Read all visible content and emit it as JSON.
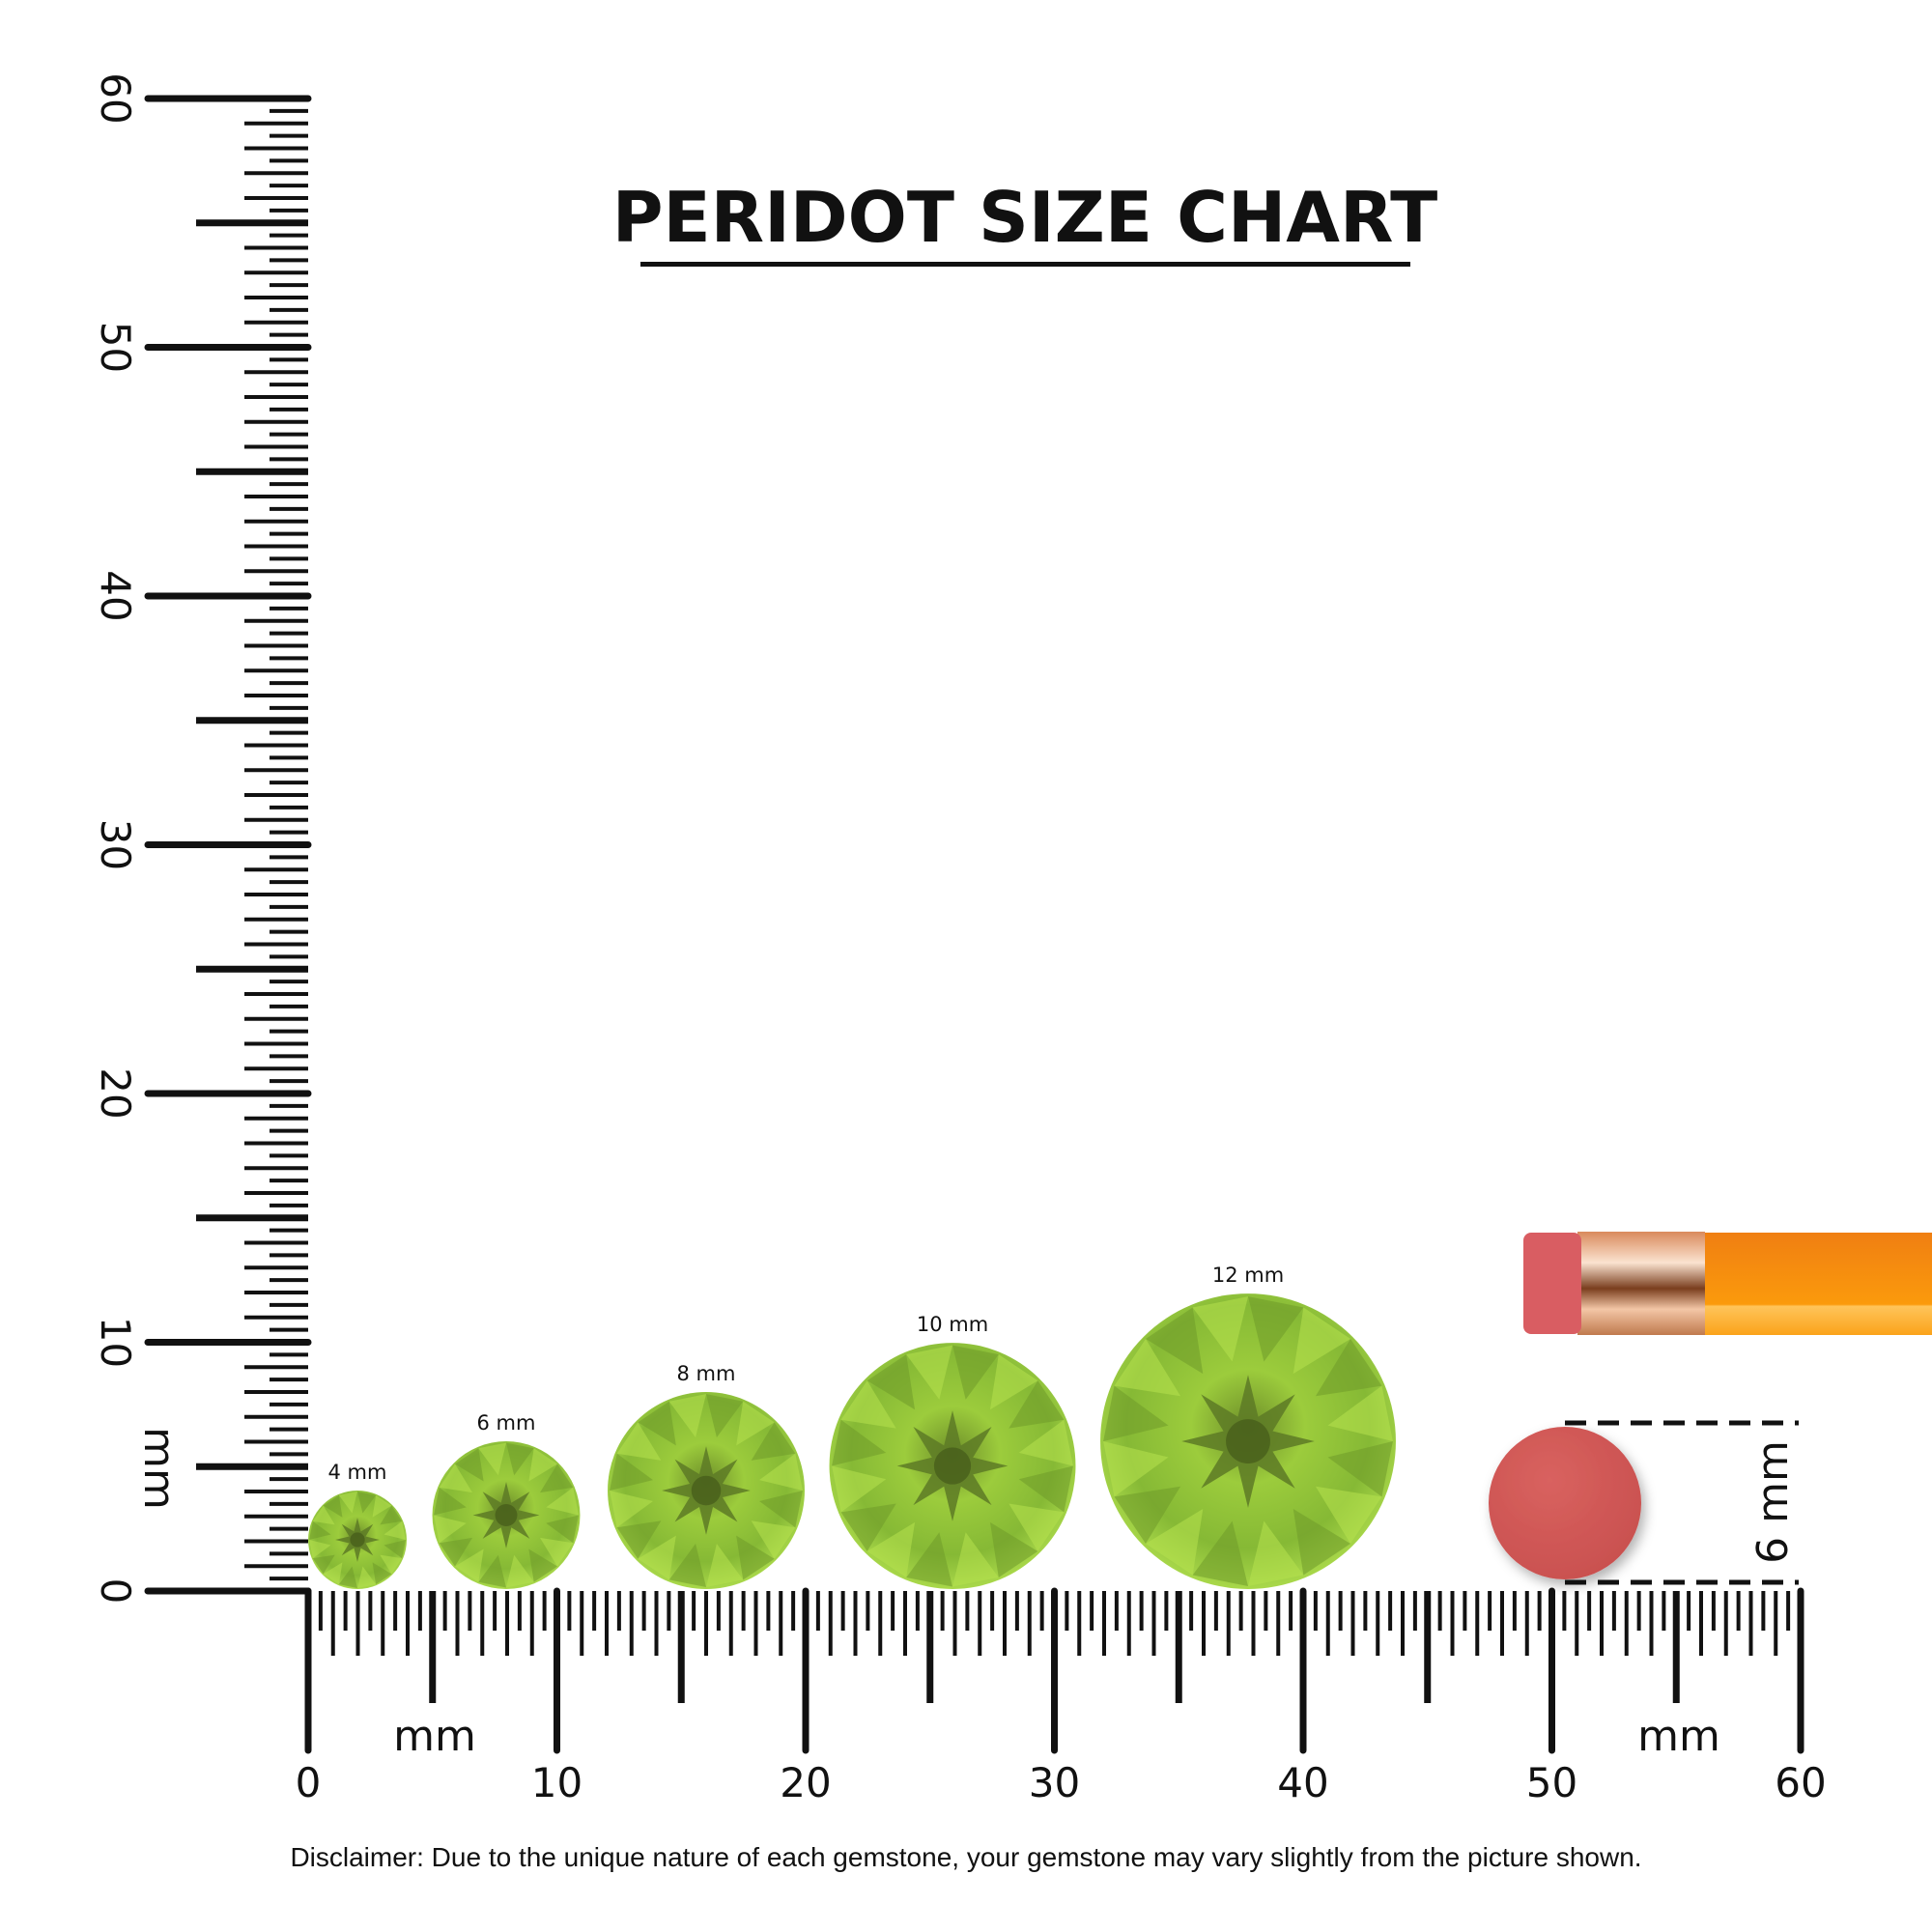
{
  "chart_data": {
    "type": "scatter",
    "title": "PERIDOT SIZE CHART",
    "xlabel": "mm",
    "ylabel": "mm",
    "xlim": [
      0,
      60
    ],
    "ylim": [
      0,
      60
    ],
    "x_ticks": [
      "0",
      "10",
      "20",
      "30",
      "40",
      "50",
      "60"
    ],
    "y_ticks": [
      "0",
      "10",
      "20",
      "30",
      "40",
      "50",
      "60"
    ],
    "gems": [
      {
        "label": "4 mm",
        "size_mm": 4
      },
      {
        "label": "6 mm",
        "size_mm": 6
      },
      {
        "label": "8 mm",
        "size_mm": 8
      },
      {
        "label": "10 mm",
        "size_mm": 10
      },
      {
        "label": "12 mm",
        "size_mm": 12
      }
    ],
    "reference": {
      "label": "6 mm",
      "size_mm": 6,
      "object": "pencil eraser"
    },
    "colors": {
      "gem": "#8fc43a",
      "eraser": "#d05a5a",
      "pencil": "#f7920f"
    }
  },
  "disclaimer": "Disclaimer: Due to the unique nature of each gemstone, your gemstone may vary slightly from the picture shown."
}
